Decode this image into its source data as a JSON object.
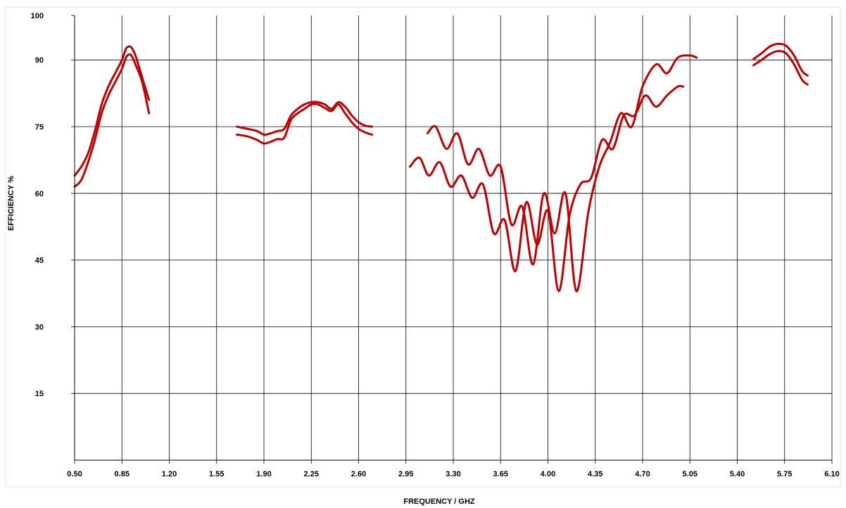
{
  "chart_data": {
    "type": "line",
    "title": "",
    "xlabel": "FREQUENCY / GHZ",
    "ylabel": "EFFICIENCY  %",
    "xlim": [
      0.5,
      6.1
    ],
    "ylim": [
      0,
      100
    ],
    "x_ticks": [
      "0.50",
      "0.85",
      "1.20",
      "1.55",
      "1.90",
      "2.25",
      "2.60",
      "2.95",
      "3.30",
      "3.65",
      "4.00",
      "4.35",
      "4.70",
      "5.05",
      "5.40",
      "5.75",
      "6.10"
    ],
    "y_ticks": [
      "15",
      "30",
      "45",
      "60",
      "75",
      "90",
      "100"
    ],
    "grid": true,
    "line_color": "#c00000",
    "series": [
      {
        "x": [
          0.5,
          0.55,
          0.6,
          0.65,
          0.7,
          0.75,
          0.8,
          0.85,
          0.88,
          0.9,
          0.92,
          0.95,
          1.0,
          1.05
        ],
        "y": [
          64,
          66,
          69,
          74,
          80,
          84,
          87,
          90,
          92.5,
          93,
          92.8,
          91,
          86,
          81
        ]
      },
      {
        "x": [
          0.5,
          0.55,
          0.6,
          0.65,
          0.7,
          0.75,
          0.8,
          0.85,
          0.88,
          0.9,
          0.92,
          0.95,
          1.0,
          1.05
        ],
        "y": [
          61.5,
          63,
          67,
          72,
          78,
          82,
          85,
          88,
          90.5,
          91.2,
          91,
          89,
          85,
          78
        ]
      },
      {
        "x": [
          1.7,
          1.78,
          1.85,
          1.9,
          1.95,
          2.0,
          2.05,
          2.1,
          2.15,
          2.2,
          2.25,
          2.3,
          2.35,
          2.4,
          2.45,
          2.5,
          2.55,
          2.6,
          2.65,
          2.7
        ],
        "y": [
          75,
          74.5,
          74,
          73.2,
          73.5,
          74,
          74.5,
          77.5,
          79,
          80,
          80.5,
          80.5,
          80,
          79,
          80.5,
          79.5,
          77.5,
          76,
          75.2,
          75
        ]
      },
      {
        "x": [
          1.7,
          1.78,
          1.85,
          1.9,
          1.95,
          2.0,
          2.05,
          2.1,
          2.15,
          2.2,
          2.25,
          2.3,
          2.35,
          2.4,
          2.45,
          2.5,
          2.55,
          2.6,
          2.65,
          2.7
        ],
        "y": [
          73.2,
          72.8,
          72,
          71.2,
          71.6,
          72.2,
          72.5,
          76.5,
          78,
          79,
          80,
          80,
          79.2,
          78.5,
          80,
          78,
          76,
          74.5,
          73.7,
          73.2
        ]
      },
      {
        "x": [
          3.11,
          3.17,
          3.25,
          3.33,
          3.41,
          3.49,
          3.57,
          3.65,
          3.73,
          3.81,
          3.89,
          3.97,
          4.05,
          4.13,
          4.21,
          4.3,
          4.38,
          4.46,
          4.54,
          4.62,
          4.7,
          4.8,
          4.88,
          4.96,
          5.05,
          5.1
        ],
        "y": [
          73.5,
          75,
          70,
          73.5,
          66.5,
          70,
          64,
          66,
          53,
          57,
          44,
          60,
          51,
          60,
          38,
          56,
          66,
          71.5,
          78,
          75,
          84,
          89,
          87,
          90.5,
          91,
          90.5
        ]
      },
      {
        "x": [
          2.98,
          3.05,
          3.12,
          3.2,
          3.28,
          3.36,
          3.44,
          3.52,
          3.6,
          3.68,
          3.76,
          3.84,
          3.92,
          4.0,
          4.08,
          4.16,
          4.24,
          4.32,
          4.4,
          4.48,
          4.56,
          4.64,
          4.72,
          4.8,
          4.88,
          4.96,
          5.0
        ],
        "y": [
          66,
          68,
          64,
          67,
          61.5,
          64,
          59,
          62,
          51,
          54,
          42.5,
          58,
          48.5,
          56,
          38,
          55,
          62,
          63.5,
          72,
          70,
          77.5,
          77.5,
          82,
          79.5,
          82,
          84,
          84
        ]
      },
      {
        "x": [
          5.52,
          5.58,
          5.64,
          5.7,
          5.76,
          5.82,
          5.88,
          5.92
        ],
        "y": [
          90.2,
          91.5,
          93,
          93.6,
          93.2,
          91,
          87.5,
          86.5
        ]
      },
      {
        "x": [
          5.52,
          5.58,
          5.64,
          5.7,
          5.76,
          5.82,
          5.88,
          5.92
        ],
        "y": [
          88.8,
          90,
          91.3,
          92,
          91.5,
          89,
          85.5,
          84.5
        ]
      }
    ]
  }
}
